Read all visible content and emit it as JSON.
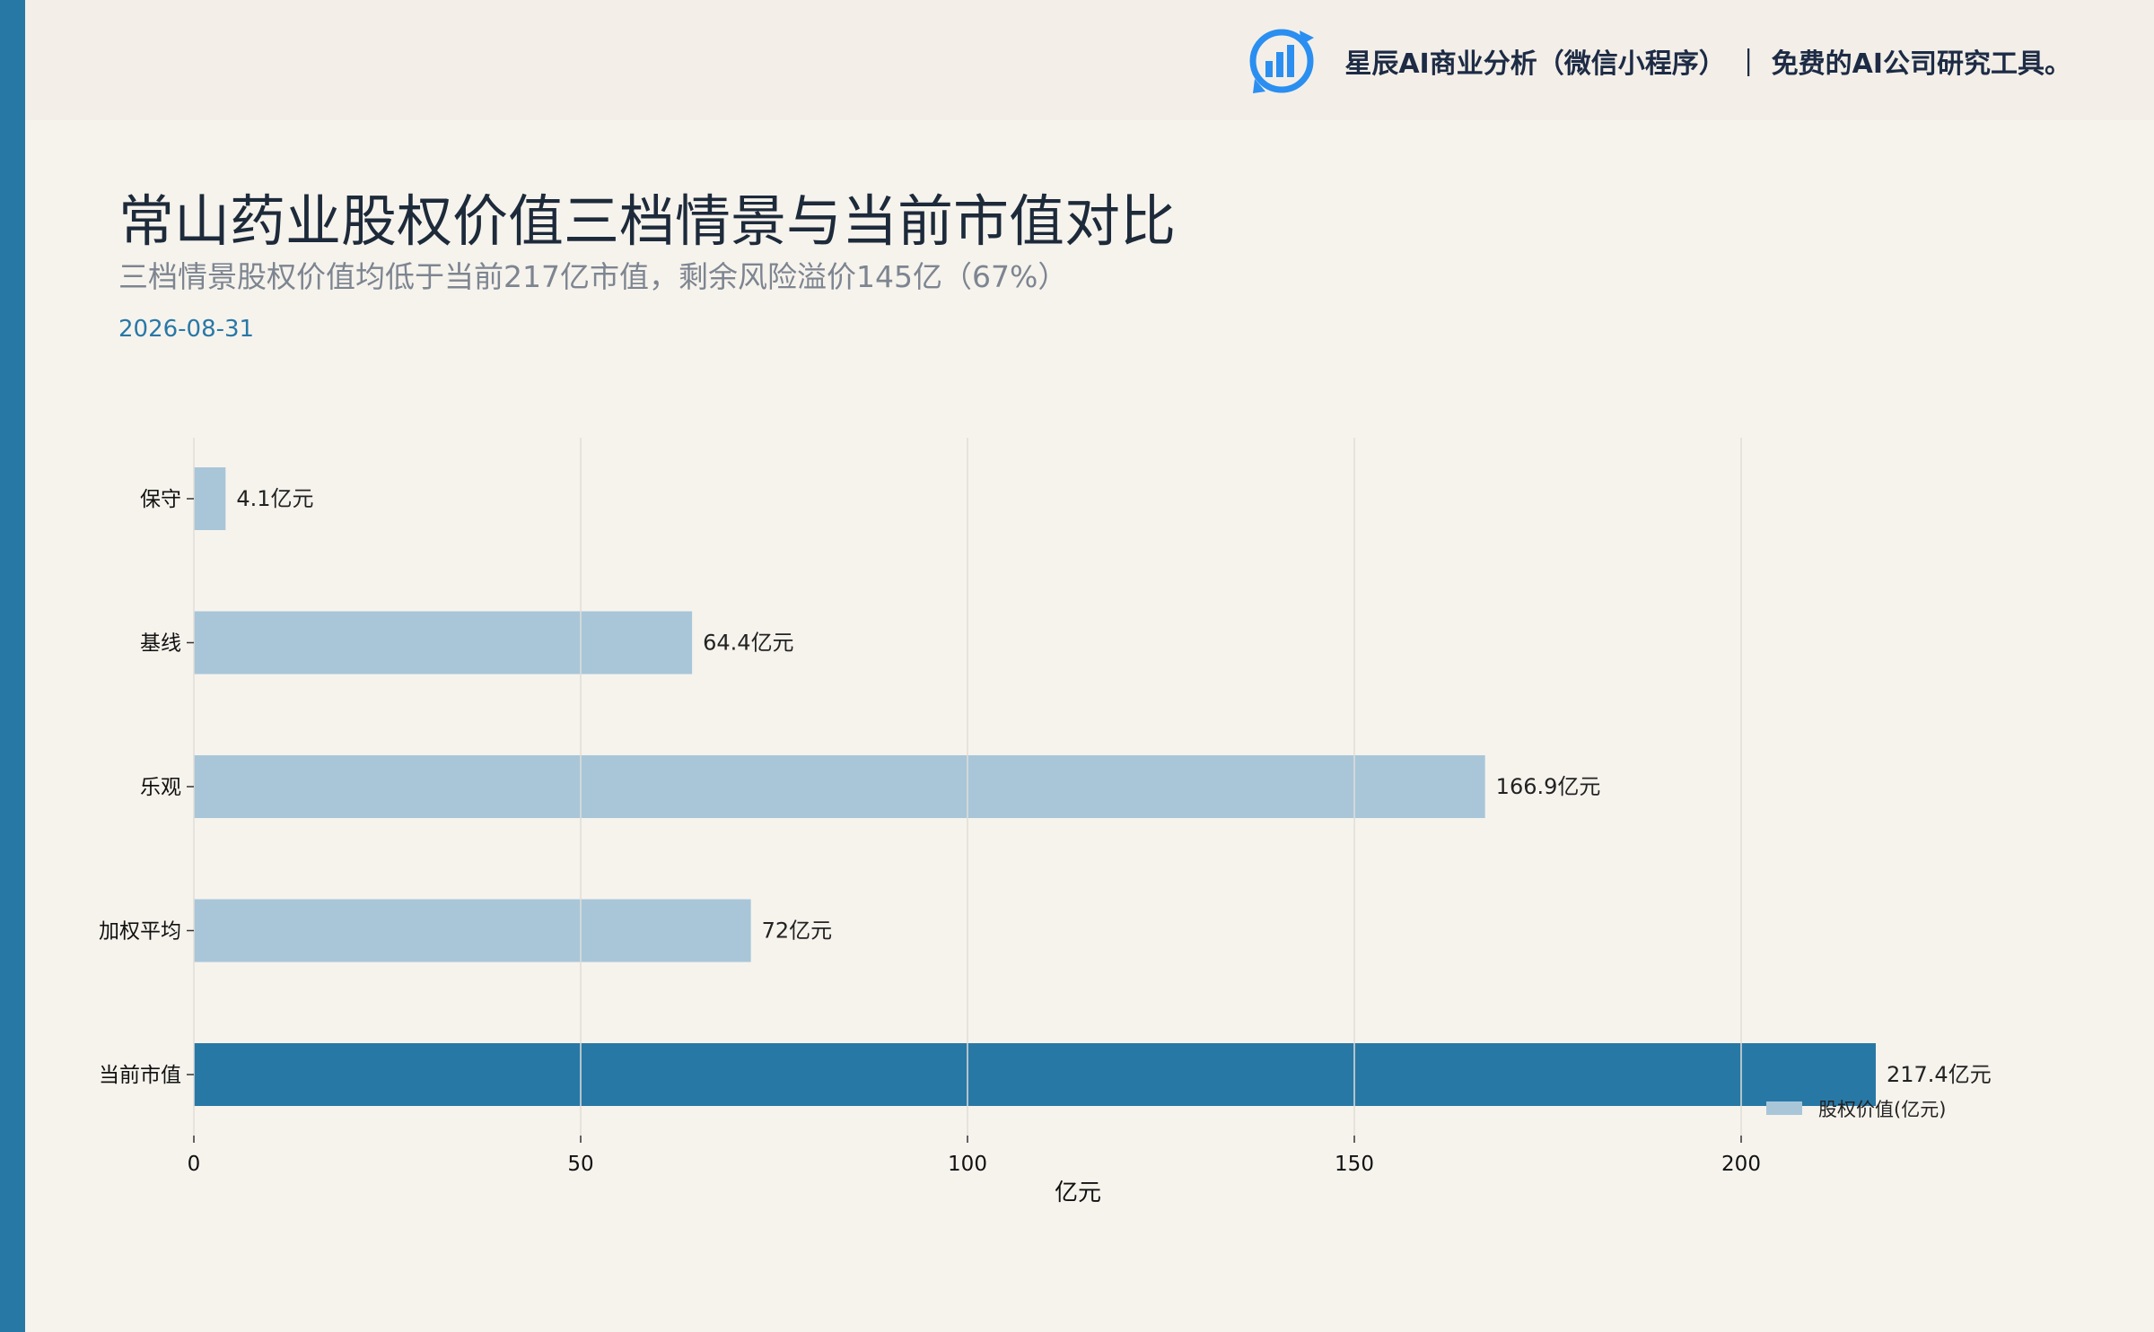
{
  "brand": {
    "text": "星辰AI商业分析（微信小程序） ｜ 免费的AI公司研究工具。",
    "logo_icon": "bar-chart-refresh-icon",
    "logo_color": "#2a8ff0"
  },
  "header": {
    "title": "常山药业股权价值三档情景与当前市值对比",
    "subtitle": "三档情景股权价值均低于当前217亿市值，剩余风险溢价145亿（67%）",
    "date": "2026-08-31"
  },
  "colors": {
    "accent": "#2878a6",
    "bar_light": "#a9c6d9",
    "bar_dark": "#2878a6",
    "grid": "#e0ddd7"
  },
  "chart_data": {
    "type": "bar",
    "orientation": "horizontal",
    "categories": [
      "保守",
      "基线",
      "乐观",
      "加权平均",
      "当前市值"
    ],
    "values": [
      4.1,
      64.4,
      166.9,
      72,
      217.4
    ],
    "value_labels": [
      "4.1亿元",
      "64.4亿元",
      "166.9亿元",
      "72亿元",
      "217.4亿元"
    ],
    "highlight_index": 4,
    "xlabel": "亿元",
    "ylabel": "",
    "xlim": [
      0,
      230
    ],
    "xticks": [
      0,
      50,
      100,
      150,
      200
    ],
    "grid": true,
    "legend": {
      "position": "bottom-right",
      "entries": [
        "股权价值(亿元)"
      ]
    }
  }
}
